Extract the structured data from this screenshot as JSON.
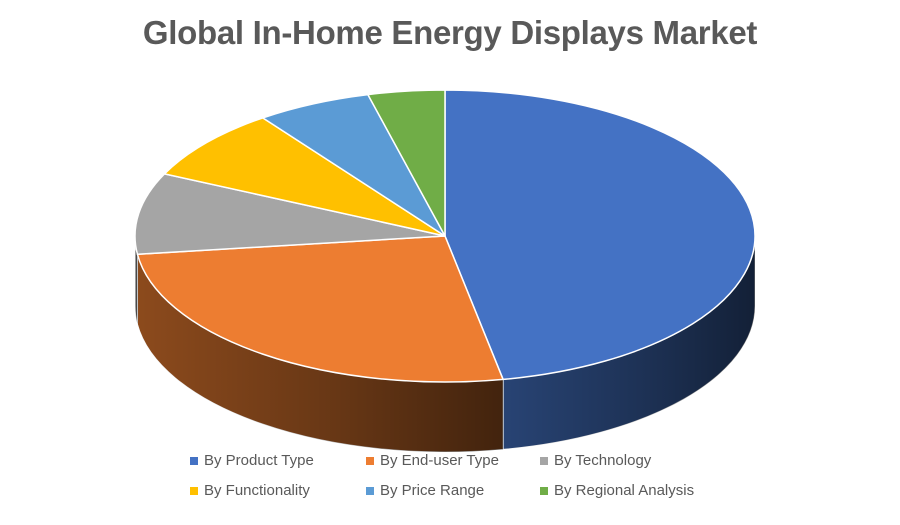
{
  "chart_data": {
    "type": "pie",
    "style": "3d",
    "title": "Global In-Home Energy Displays Market",
    "categories": [
      "By Product Type",
      "By End-user Type",
      "By Technology",
      "By Functionality",
      "By Price Range",
      "By Regional Analysis"
    ],
    "values": [
      47,
      26,
      9,
      8,
      6,
      4
    ],
    "colors": [
      "#4472C4",
      "#ED7D31",
      "#A5A5A5",
      "#FFC000",
      "#5B9BD5",
      "#70AD47"
    ],
    "legend": "bottom"
  }
}
